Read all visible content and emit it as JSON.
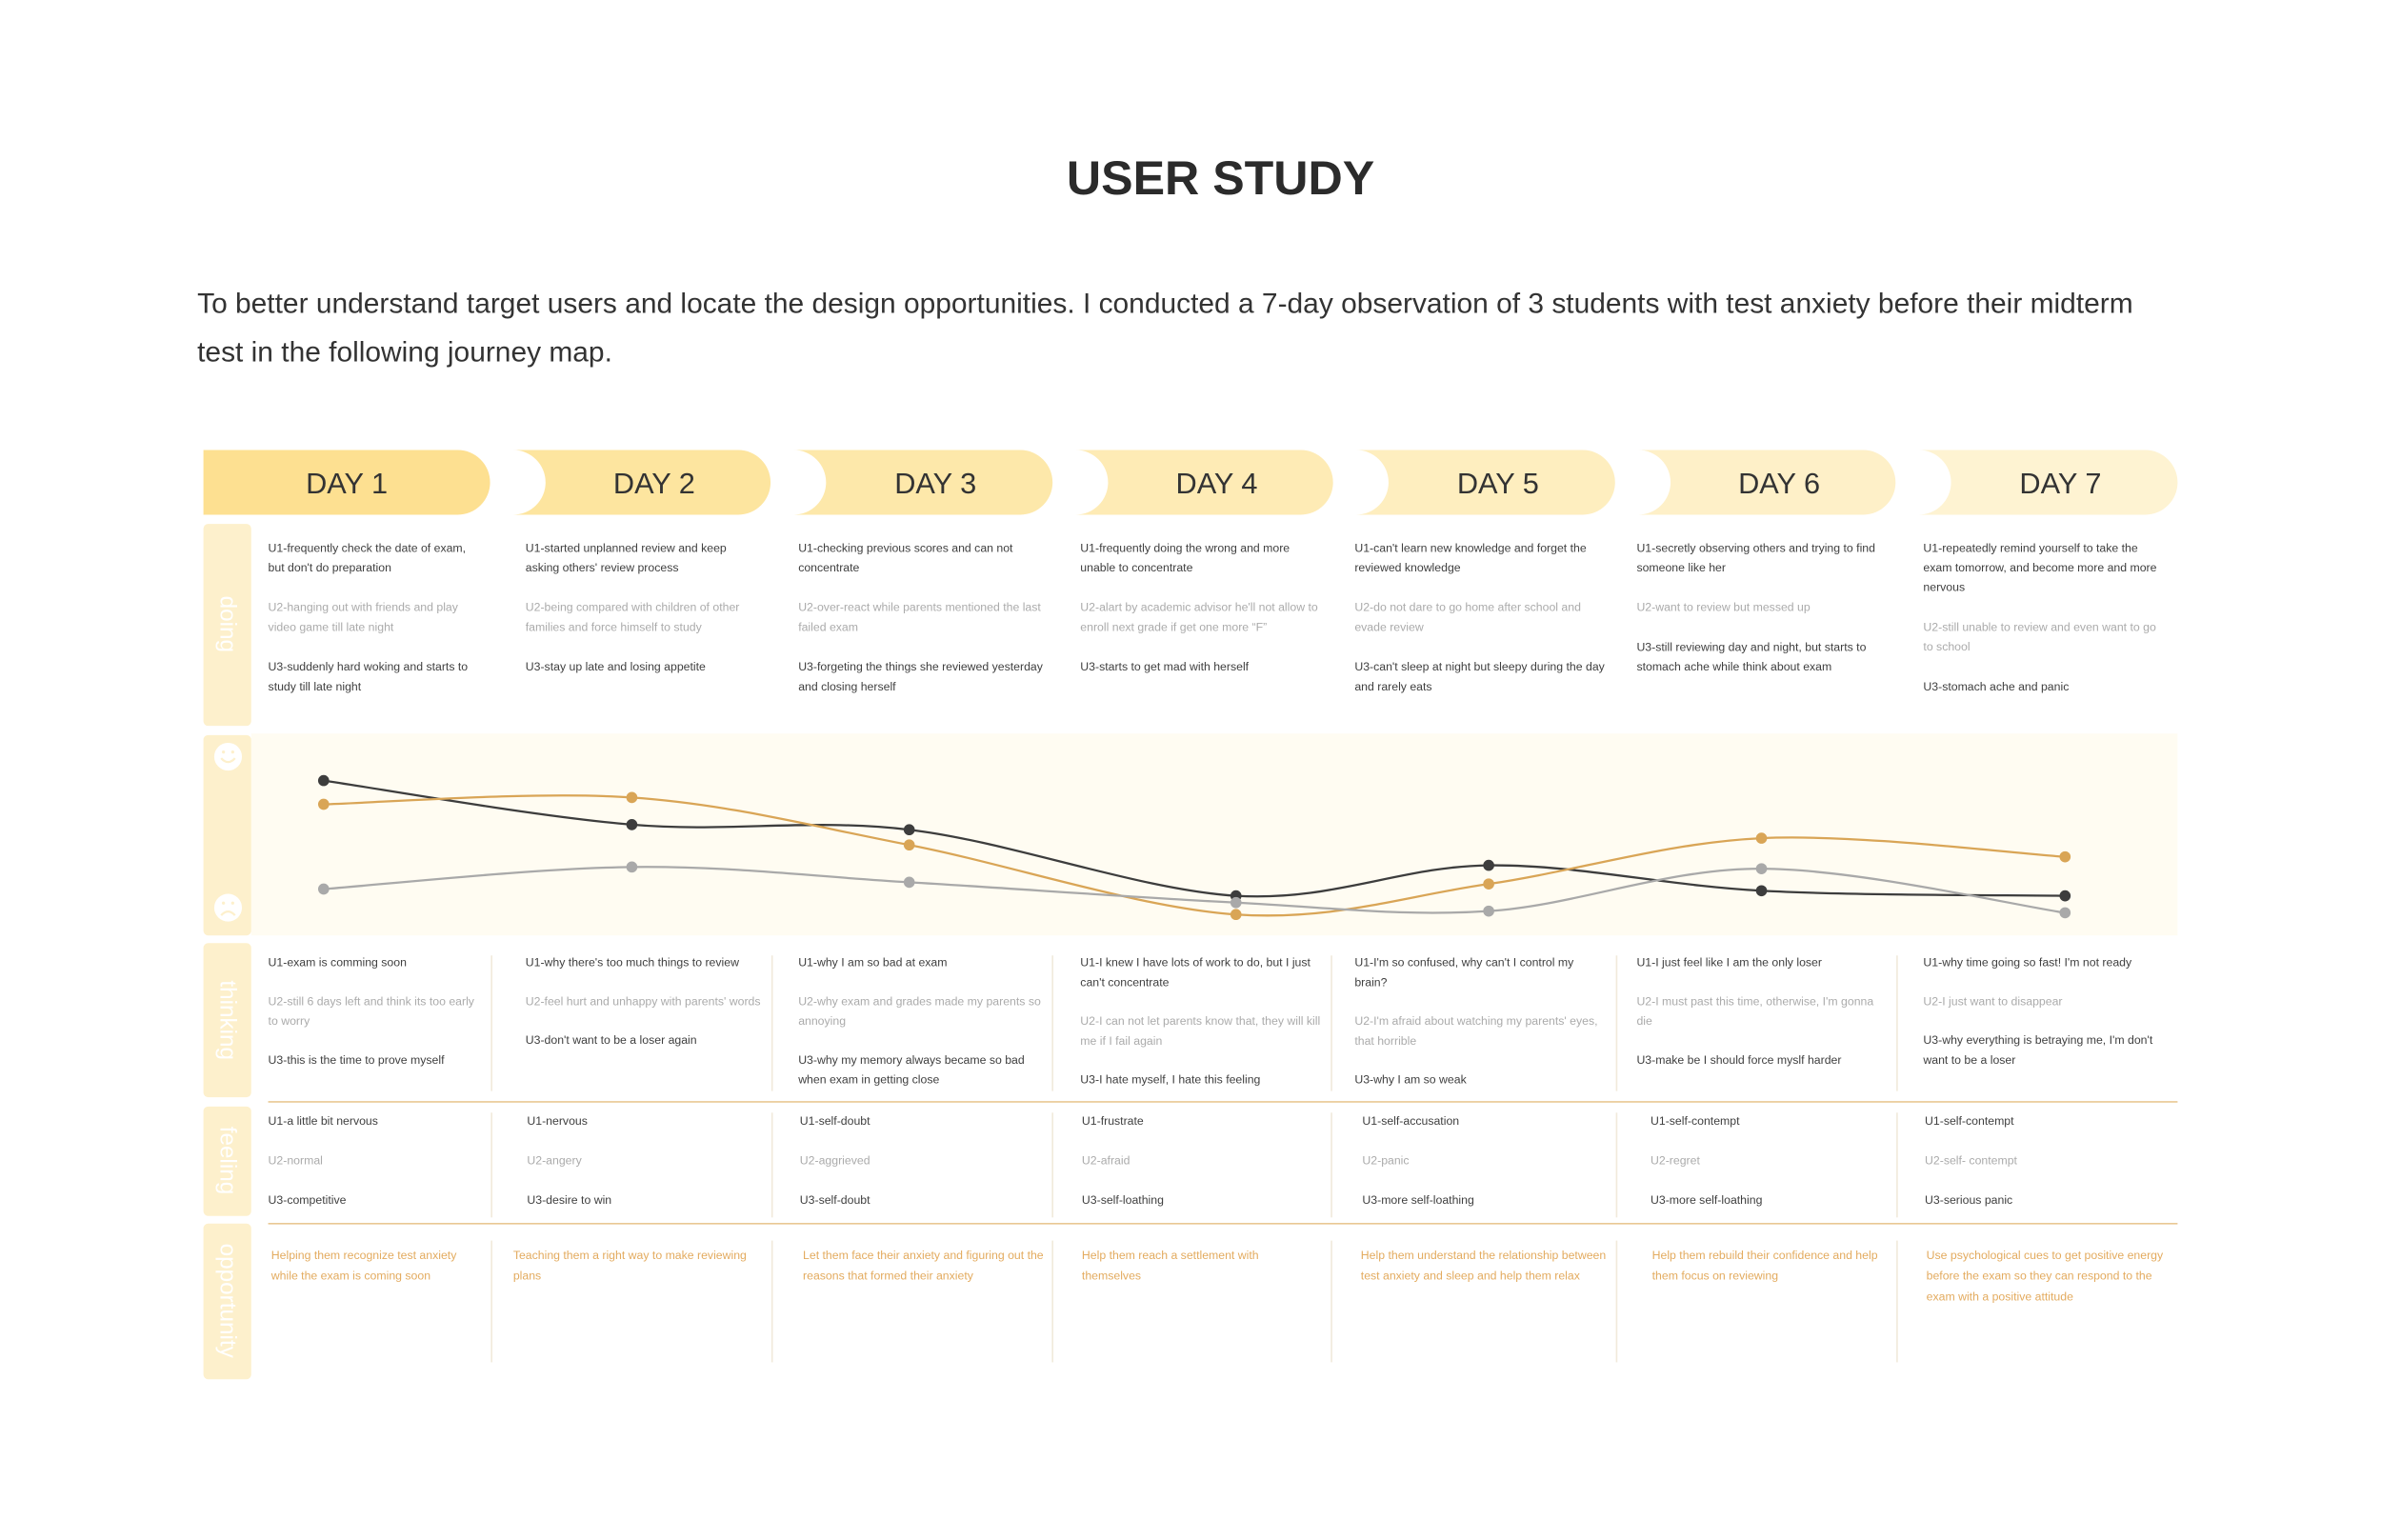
{
  "title": "USER STUDY",
  "intro": "To better understand target users and locate the design opportunities. I conducted a 7-day observation of 3 students with test anxiety before their midterm test in the following journey map.",
  "row_labels": [
    "doing",
    "thinking",
    "feeling",
    "opportunity"
  ],
  "days": [
    {
      "label": "DAY 1",
      "doing": [
        "U1-frequently check the date of exam, but don't do preparation",
        "U2-hanging out with friends and play video game till late night",
        "U3-suddenly hard woking and starts to study till late night"
      ],
      "thinking": [
        "U1-exam is comming soon",
        "U2-still 6 days left and think its too early to worry",
        "U3-this is the time to prove myself"
      ],
      "feeling": [
        "U1-a little bit nervous",
        "U2-normal",
        "U3-competitive"
      ],
      "opportunity": "Helping them recognize test anxiety while the exam is coming soon"
    },
    {
      "label": "DAY 2",
      "doing": [
        "U1-started unplanned review and keep asking others' review process",
        "U2-being compared with children of other families and force himself to study",
        "U3-stay up late and losing appetite"
      ],
      "thinking": [
        "U1-why there's too much things to review",
        "U2-feel hurt and unhappy with parents' words",
        "U3-don't want to be a loser again"
      ],
      "feeling": [
        "U1-nervous",
        "U2-angery",
        "U3-desire to win"
      ],
      "opportunity": "Teaching them a right way to make reviewing plans"
    },
    {
      "label": "DAY 3",
      "doing": [
        "U1-checking previous scores and can not concentrate",
        "U2-over-react while parents mentioned the last  failed exam",
        "U3-forgeting the things she reviewed yesterday and closing herself"
      ],
      "thinking": [
        "U1-why I am so bad at exam",
        "U2-why exam and grades made my parents so annoying",
        "U3-why my memory always became so bad when exam in getting close"
      ],
      "feeling": [
        "U1-self-doubt",
        "U2-aggrieved",
        "U3-self-doubt"
      ],
      "opportunity": "Let them face their anxiety and figuring out the reasons that formed their anxiety"
    },
    {
      "label": "DAY 4",
      "doing": [
        "U1-frequently doing the wrong  and more unable to concentrate",
        "U2-alart by academic advisor he'll not allow to enroll next grade if get one more “F”",
        "U3-starts to get mad with herself"
      ],
      "thinking": [
        "U1-I knew I have lots of work to do, but I just can't concentrate",
        "U2-I can not let parents know that, they will kill me if I fail again",
        "U3-I hate myself, I hate this feeling"
      ],
      "feeling": [
        "U1-frustrate",
        "U2-afraid",
        "U3-self-loathing"
      ],
      "opportunity": "Help them reach a settlement with themselves"
    },
    {
      "label": "DAY 5",
      "doing": [
        "U1-can't learn new knowledge and forget the reviewed knowledge",
        "U2-do not dare to go home after school and evade review",
        "U3-can't sleep at night but sleepy during the day and rarely eats"
      ],
      "thinking": [
        "U1-I'm so confused, why can't I control my brain?",
        "U2-I'm afraid about watching my parents' eyes, that horrible",
        "U3-why I am so weak"
      ],
      "feeling": [
        "U1-self-accusation",
        "U2-panic",
        "U3-more self-loathing"
      ],
      "opportunity": "Help them understand the relationship between test anxiety and sleep and help them relax"
    },
    {
      "label": "DAY 6",
      "doing": [
        "U1-secretly observing others and trying to find someone like her",
        "U2-want to review but messed up",
        "U3-still reviewing day and night, but starts to stomach ache while think about exam"
      ],
      "thinking": [
        "U1-I just feel like I am the only loser",
        "U2-I must past this time, otherwise, I'm gonna die",
        "U3-make be I should force myslf harder"
      ],
      "feeling": [
        "U1-self-contempt",
        "U2-regret",
        "U3-more self-loathing"
      ],
      "opportunity": "Help them rebuild their confidence and help them focus on reviewing"
    },
    {
      "label": "DAY 7",
      "doing": [
        "U1-repeatedly remind yourself to take the exam tomorrow, and become more and more nervous",
        "U2-still unable to review  and even want to go to school",
        "U3-stomach ache and panic"
      ],
      "thinking": [
        "U1-why time going so fast! I'm not ready",
        "U2-I just want to disappear",
        "U3-why everything is betraying me, I'm don't want to be a loser"
      ],
      "feeling": [
        "U1-self-contempt",
        "U2-self- contempt",
        "U3-serious panic"
      ],
      "opportunity": "Use psychological cues to get positive energy before the exam so they can respond to the exam with a positive attitude"
    }
  ],
  "emotion": {
    "ylim": [
      0,
      100
    ],
    "series": [
      {
        "color": "#3d3d3d",
        "values": [
          85,
          59,
          56,
          17,
          35,
          20,
          17
        ]
      },
      {
        "color": "#d9a556",
        "values": [
          71,
          75,
          47,
          6,
          24,
          51,
          40
        ]
      },
      {
        "color": "#a9a9a9",
        "values": [
          21,
          34,
          25,
          13,
          8,
          33,
          7
        ]
      }
    ]
  }
}
